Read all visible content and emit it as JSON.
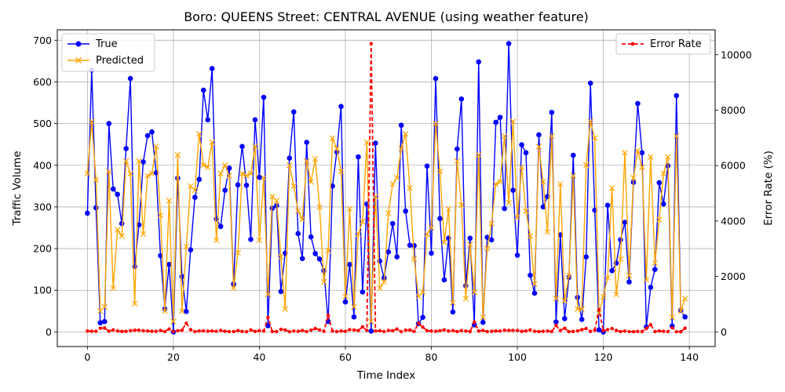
{
  "chart_data": {
    "type": "line",
    "title": "Boro: QUEENS Street: CENTRAL AVENUE (using weather feature)",
    "xlabel": "Time Index",
    "ylabel": "Traffic Volume",
    "y2label": "Error Rate (%)",
    "xlim": [
      -7,
      146
    ],
    "ylim": [
      -35,
      725
    ],
    "y2lim": [
      -530,
      10900
    ],
    "xticks": [
      0,
      20,
      40,
      60,
      80,
      100,
      120,
      140
    ],
    "yticks": [
      0,
      100,
      200,
      300,
      400,
      500,
      600,
      700
    ],
    "y2ticks": [
      0,
      2000,
      4000,
      6000,
      8000,
      10000
    ],
    "grid": true,
    "legend_left": {
      "position": "upper-left",
      "entries": [
        "True",
        "Predicted"
      ]
    },
    "legend_right": {
      "position": "upper-right",
      "entries": [
        "Error Rate"
      ]
    },
    "series": [
      {
        "name": "True",
        "axis": "left",
        "color": "#0000ff",
        "marker": "circle",
        "values": [
          285,
          628,
          298,
          22,
          25,
          500,
          343,
          330,
          260,
          440,
          608,
          157,
          257,
          408,
          471,
          480,
          382,
          183,
          55,
          162,
          0,
          369,
          133,
          49,
          197,
          323,
          366,
          580,
          509,
          632,
          271,
          253,
          340,
          393,
          115,
          353,
          445,
          352,
          222,
          509,
          371,
          563,
          15,
          297,
          303,
          97,
          189,
          417,
          528,
          236,
          176,
          455,
          228,
          188,
          175,
          147,
          25,
          350,
          432,
          541,
          72,
          162,
          36,
          420,
          96,
          307,
          2,
          453,
          170,
          130,
          192,
          260,
          180,
          496,
          290,
          208,
          207,
          20,
          35,
          398,
          189,
          608,
          272,
          125,
          225,
          48,
          439,
          559,
          111,
          225,
          17,
          648,
          23,
          227,
          221,
          503,
          515,
          296,
          692,
          340,
          184,
          449,
          430,
          136,
          93,
          473,
          300,
          325,
          527,
          24,
          233,
          32,
          131,
          424,
          83,
          30,
          180,
          597,
          292,
          5,
          0,
          304,
          147,
          165,
          221,
          263,
          120,
          359,
          548,
          430,
          12,
          107,
          150,
          358,
          307,
          399,
          14,
          567,
          52,
          36
        ]
      },
      {
        "name": "Predicted",
        "axis": "left",
        "color": "#ffa500",
        "marker": "x",
        "values": [
          380,
          505,
          365,
          50,
          60,
          385,
          105,
          245,
          230,
          410,
          380,
          68,
          410,
          235,
          375,
          380,
          445,
          280,
          50,
          315,
          25,
          425,
          50,
          205,
          350,
          340,
          475,
          400,
          395,
          455,
          220,
          380,
          400,
          375,
          105,
          190,
          380,
          375,
          380,
          445,
          220,
          370,
          90,
          325,
          315,
          180,
          55,
          400,
          350,
          290,
          270,
          410,
          360,
          415,
          300,
          120,
          195,
          465,
          440,
          385,
          85,
          295,
          60,
          235,
          265,
          455,
          25,
          325,
          105,
          120,
          285,
          355,
          370,
          440,
          475,
          345,
          175,
          85,
          95,
          235,
          250,
          500,
          385,
          215,
          295,
          70,
          410,
          305,
          80,
          210,
          95,
          425,
          35,
          200,
          260,
          355,
          360,
          470,
          310,
          505,
          275,
          395,
          290,
          230,
          115,
          445,
          360,
          240,
          470,
          80,
          355,
          75,
          135,
          375,
          55,
          55,
          400,
          505,
          465,
          45,
          85,
          130,
          345,
          90,
          175,
          430,
          135,
          370,
          435,
          395,
          125,
          420,
          165,
          270,
          380,
          420,
          35,
          470,
          50,
          80
        ]
      },
      {
        "name": "Error Rate",
        "axis": "right",
        "color": "#ff0000",
        "marker": "dot",
        "dashed": true,
        "values": [
          30,
          20,
          20,
          130,
          140,
          25,
          70,
          30,
          15,
          20,
          40,
          60,
          60,
          40,
          30,
          20,
          20,
          50,
          10,
          100,
          10,
          40,
          60,
          310,
          80,
          10,
          30,
          35,
          25,
          30,
          20,
          50,
          20,
          10,
          10,
          45,
          15,
          5,
          70,
          15,
          40,
          30,
          520,
          10,
          10,
          90,
          70,
          5,
          30,
          20,
          50,
          10,
          60,
          120,
          70,
          20,
          600,
          30,
          10,
          30,
          20,
          80,
          70,
          45,
          180,
          50,
          10400,
          30,
          40,
          10,
          50,
          40,
          100,
          10,
          60,
          65,
          15,
          310,
          170,
          40,
          30,
          20,
          40,
          70,
          30,
          45,
          10,
          45,
          30,
          10,
          360,
          30,
          50,
          10,
          20,
          30,
          30,
          60,
          50,
          50,
          50,
          15,
          35,
          70,
          20,
          10,
          20,
          30,
          10,
          230,
          50,
          130,
          5,
          15,
          35,
          80,
          120,
          15,
          60,
          800,
          40,
          80,
          120,
          50,
          10,
          30,
          10,
          5,
          15,
          10,
          120,
          260,
          10,
          30,
          20,
          10,
          150,
          5,
          5,
          130
        ]
      }
    ]
  }
}
